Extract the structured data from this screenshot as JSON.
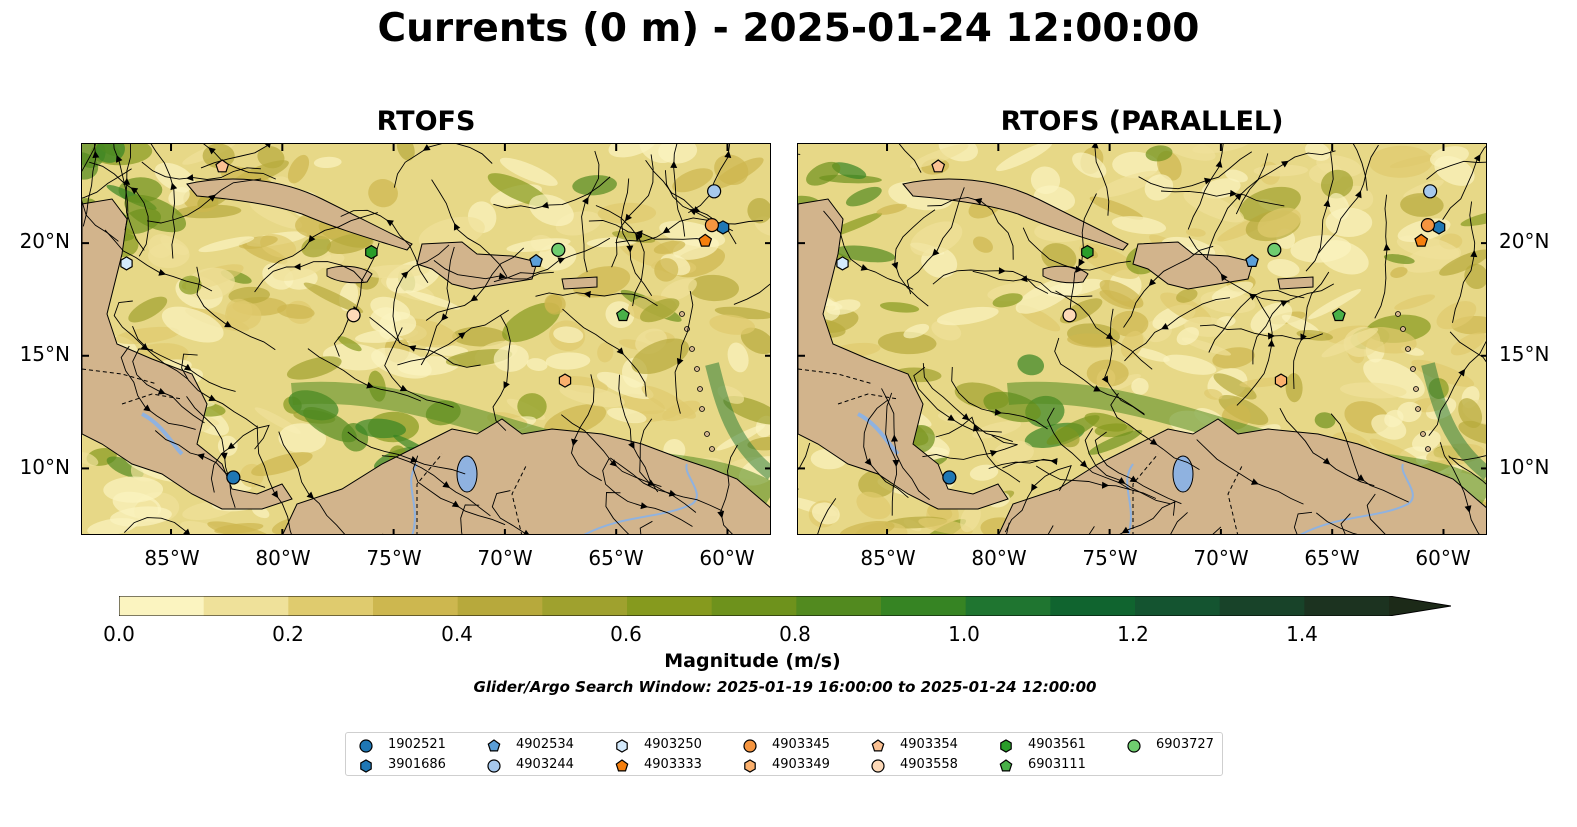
{
  "title": "Currents (0 m) - 2025-01-24 12:00:00",
  "panels": [
    {
      "title": "RTOFS"
    },
    {
      "title": "RTOFS (PARALLEL)"
    }
  ],
  "axes": {
    "lon_labels": [
      "85°W",
      "80°W",
      "75°W",
      "70°W",
      "65°W",
      "60°W"
    ],
    "lat_labels": [
      "20°N",
      "15°N",
      "10°N"
    ],
    "lon_range": [
      -89,
      -58
    ],
    "lat_range": [
      7,
      24.4
    ]
  },
  "colorbar": {
    "label": "Magnitude (m/s)",
    "ticks": [
      "0.0",
      "0.2",
      "0.4",
      "0.6",
      "0.8",
      "1.0",
      "1.2",
      "1.4"
    ],
    "range": [
      0,
      1.5
    ],
    "extend": "max",
    "colors": [
      "#fbf4c0",
      "#efe19a",
      "#dfcb6e",
      "#cdb74f",
      "#b7a93c",
      "#9fa12e",
      "#869a1e",
      "#6e921c",
      "#528a1f",
      "#368423",
      "#1f7530",
      "#10642f",
      "#145430",
      "#184329",
      "#1c3320",
      "#1c2a18"
    ]
  },
  "search_window": "Glider/Argo Search Window: 2025-01-19 16:00:00 to 2025-01-24 12:00:00",
  "colors": {
    "land": "#d2b48c",
    "lake": "#8fb2e0",
    "ocean_base": "#e7d887"
  },
  "legend": [
    {
      "id": "1902521",
      "marker": "circle",
      "color": "#1f77b4"
    },
    {
      "id": "3901686",
      "marker": "hexagon",
      "color": "#1f77b4"
    },
    {
      "id": "4902534",
      "marker": "pentagon",
      "color": "#5b9fd8"
    },
    {
      "id": "4903244",
      "marker": "circle",
      "color": "#a6c8ec"
    },
    {
      "id": "4903250",
      "marker": "hexagon",
      "color": "#d4eafc"
    },
    {
      "id": "4903333",
      "marker": "pentagon",
      "color": "#f57f0e"
    },
    {
      "id": "4903345",
      "marker": "circle",
      "color": "#f59540"
    },
    {
      "id": "4903349",
      "marker": "hexagon",
      "color": "#fbb06d"
    },
    {
      "id": "4903354",
      "marker": "pentagon",
      "color": "#fbc193"
    },
    {
      "id": "4903558",
      "marker": "circle",
      "color": "#fdd9b8"
    },
    {
      "id": "4903561",
      "marker": "hexagon",
      "color": "#2a9d2a"
    },
    {
      "id": "6903111",
      "marker": "pentagon",
      "color": "#48b048"
    },
    {
      "id": "6903727",
      "marker": "circle",
      "color": "#6fcd6f"
    }
  ],
  "floats": [
    {
      "id": "1902521",
      "lon": -82.2,
      "lat": 9.6
    },
    {
      "id": "3901686",
      "lon": -60.2,
      "lat": 20.7
    },
    {
      "id": "4902534",
      "lon": -68.6,
      "lat": 19.2
    },
    {
      "id": "4903244",
      "lon": -60.6,
      "lat": 22.3
    },
    {
      "id": "4903250",
      "lon": -87.0,
      "lat": 19.1
    },
    {
      "id": "4903333",
      "lon": -61.0,
      "lat": 20.1
    },
    {
      "id": "4903345",
      "lon": -60.7,
      "lat": 20.8
    },
    {
      "id": "4903349",
      "lon": -67.3,
      "lat": 13.9
    },
    {
      "id": "4903354",
      "lon": -82.7,
      "lat": 23.4
    },
    {
      "id": "4903558",
      "lon": -76.8,
      "lat": 16.8
    },
    {
      "id": "4903561",
      "lon": -76.0,
      "lat": 19.6
    },
    {
      "id": "6903111",
      "lon": -64.7,
      "lat": 16.8
    },
    {
      "id": "6903727",
      "lon": -67.6,
      "lat": 19.7
    }
  ]
}
